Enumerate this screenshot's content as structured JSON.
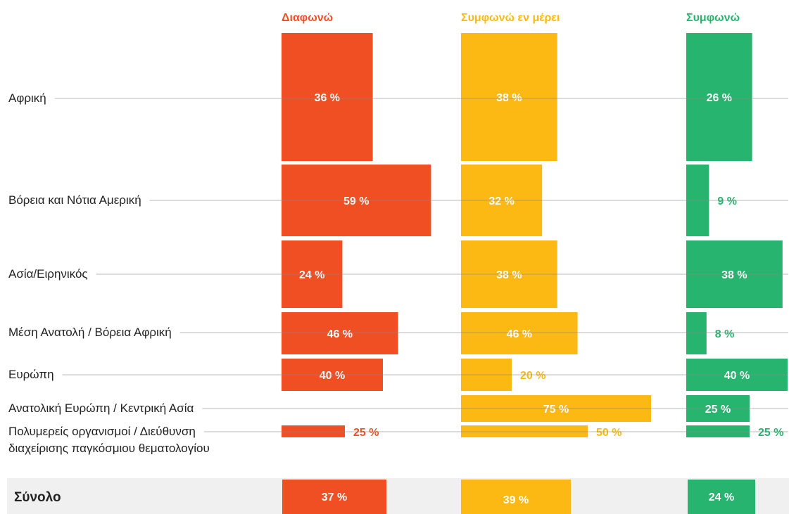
{
  "chart_data": {
    "type": "bar",
    "categories": [
      "Αφρική",
      "Βόρεια και Νότια Αμερική",
      "Ασία/Ειρηνικός",
      "Μέση Ανατολή / Βόρεια Αφρική",
      "Ευρώπη",
      "Ανατολική Ευρώπη / Κεντρική Ασία",
      "Πολυμερείς οργανισμοί / Διεύθυνση διαχείρισης παγκόσμιου θεματολογίου",
      "Σύνολο"
    ],
    "series": [
      {
        "name": "Διαφωνώ",
        "color": "#f04e23",
        "values": [
          36,
          59,
          24,
          46,
          40,
          null,
          25,
          37
        ],
        "value_labels": [
          "36 %",
          "59 %",
          "24 %",
          "46 %",
          "40 %",
          null,
          "25 %",
          "37 %"
        ]
      },
      {
        "name": "Συμφωνώ εν μέρει",
        "color": "#fdb913",
        "values": [
          38,
          32,
          38,
          46,
          20,
          75,
          50,
          39
        ],
        "value_labels": [
          "38 %",
          "32 %",
          "38 %",
          "46 %",
          "20 %",
          "75 %",
          "50 %",
          "39 %"
        ]
      },
      {
        "name": "Συμφωνώ",
        "color": "#27b46e",
        "values": [
          26,
          9,
          38,
          8,
          40,
          25,
          25,
          24
        ],
        "value_labels": [
          "26 %",
          "9 %",
          "38 %",
          "8 %",
          "40 %",
          "25 %",
          "25 %",
          "24 %"
        ]
      }
    ]
  }
}
